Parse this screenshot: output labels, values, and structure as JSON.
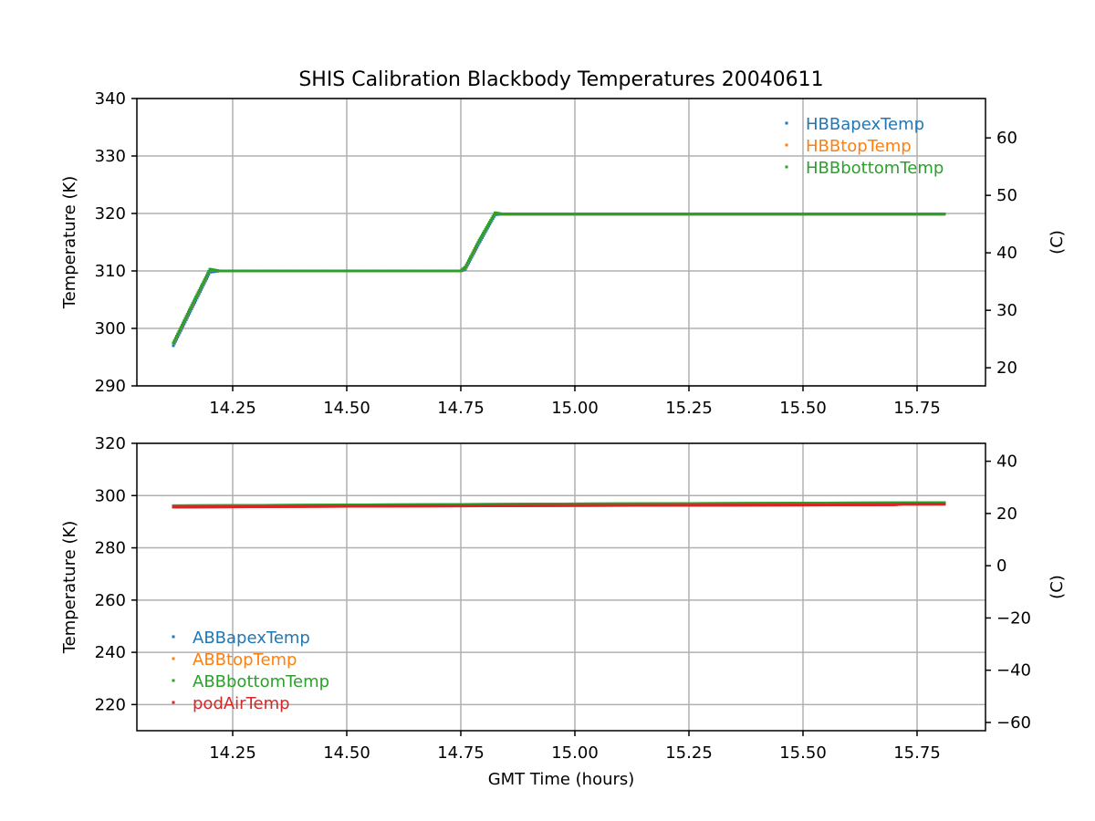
{
  "figure": {
    "title": "SHIS Calibration Blackbody Temperatures 20040611",
    "xlabel": "GMT Time (hours)"
  },
  "chart_data": [
    {
      "type": "scatter",
      "id": "top",
      "title": "SHIS Calibration Blackbody Temperatures 20040611",
      "xlabel": "",
      "ylabel": "Temperature (K)",
      "y2label": "(C)",
      "xlim": [
        14.04,
        15.9
      ],
      "ylim": [
        290,
        340
      ],
      "y2lim": [
        16.85,
        66.85
      ],
      "xticks": [
        14.25,
        14.5,
        14.75,
        15.0,
        15.25,
        15.5,
        15.75
      ],
      "xtick_labels": [
        "14.25",
        "14.50",
        "14.75",
        "15.00",
        "15.25",
        "15.50",
        "15.75"
      ],
      "yticks": [
        290,
        300,
        310,
        320,
        330,
        340
      ],
      "ytick_labels": [
        "290",
        "300",
        "310",
        "320",
        "330",
        "340"
      ],
      "y2ticks": [
        20,
        30,
        40,
        50,
        60
      ],
      "y2tick_labels": [
        "20",
        "30",
        "40",
        "50",
        "60"
      ],
      "grid": true,
      "legend_position": "upper right",
      "series": [
        {
          "name": "HBBapexTemp",
          "color": "#1f77b4",
          "x": [
            14.12,
            14.16,
            14.2,
            14.22,
            14.5,
            14.75,
            14.76,
            14.79,
            14.825,
            14.84,
            15.0,
            15.25,
            15.5,
            15.81
          ],
          "y": [
            297.0,
            303.4,
            309.8,
            310.0,
            310.0,
            310.0,
            310.3,
            314.8,
            319.8,
            319.9,
            319.9,
            319.9,
            319.9,
            319.9
          ]
        },
        {
          "name": "HBBtopTemp",
          "color": "#ff7f0e",
          "x": [
            14.12,
            14.16,
            14.2,
            14.22,
            14.5,
            14.75,
            14.76,
            14.79,
            14.825,
            14.84,
            15.0,
            15.25,
            15.5,
            15.81
          ],
          "y": [
            297.4,
            303.9,
            310.2,
            310.0,
            310.0,
            310.0,
            310.6,
            315.2,
            320.1,
            319.9,
            319.9,
            319.9,
            319.9,
            319.9
          ]
        },
        {
          "name": "HBBbottomTemp",
          "color": "#2ca02c",
          "x": [
            14.12,
            14.16,
            14.2,
            14.22,
            14.5,
            14.75,
            14.76,
            14.79,
            14.825,
            14.84,
            15.0,
            15.25,
            15.5,
            15.81
          ],
          "y": [
            297.5,
            304.0,
            310.3,
            310.0,
            310.0,
            310.0,
            310.7,
            315.3,
            320.1,
            319.9,
            319.9,
            319.9,
            319.9,
            319.9
          ]
        }
      ]
    },
    {
      "type": "scatter",
      "id": "bottom",
      "title": "",
      "xlabel": "GMT Time (hours)",
      "ylabel": "Temperature (K)",
      "y2label": "(C)",
      "xlim": [
        14.04,
        15.9
      ],
      "ylim": [
        210,
        320
      ],
      "y2lim": [
        -63.15,
        46.85
      ],
      "xticks": [
        14.25,
        14.5,
        14.75,
        15.0,
        15.25,
        15.5,
        15.75
      ],
      "xtick_labels": [
        "14.25",
        "14.50",
        "14.75",
        "15.00",
        "15.25",
        "15.50",
        "15.75"
      ],
      "yticks": [
        220,
        240,
        260,
        280,
        300,
        320
      ],
      "ytick_labels": [
        "220",
        "240",
        "260",
        "280",
        "300",
        "320"
      ],
      "y2ticks": [
        -60,
        -40,
        -20,
        0,
        20,
        40
      ],
      "y2tick_labels": [
        "−60",
        "−40",
        "−20",
        "0",
        "20",
        "40"
      ],
      "grid": true,
      "legend_position": "lower left",
      "series": [
        {
          "name": "ABBapexTemp",
          "color": "#1f77b4",
          "x": [
            14.12,
            14.5,
            15.0,
            15.5,
            15.81
          ],
          "y": [
            295.9,
            296.2,
            296.6,
            296.9,
            297.1
          ]
        },
        {
          "name": "ABBtopTemp",
          "color": "#ff7f0e",
          "x": [
            14.12,
            14.5,
            15.0,
            15.5,
            15.81
          ],
          "y": [
            296.0,
            296.3,
            296.7,
            297.0,
            297.2
          ]
        },
        {
          "name": "ABBbottomTemp",
          "color": "#2ca02c",
          "x": [
            14.12,
            14.5,
            15.0,
            15.5,
            15.81
          ],
          "y": [
            296.1,
            296.4,
            296.8,
            297.1,
            297.3
          ]
        },
        {
          "name": "podAirTemp",
          "color": "#d62728",
          "x": [
            14.12,
            14.5,
            15.0,
            15.5,
            15.7,
            15.72,
            15.81
          ],
          "y": [
            295.6,
            295.9,
            296.2,
            296.4,
            296.5,
            296.7,
            296.7
          ]
        }
      ]
    }
  ]
}
